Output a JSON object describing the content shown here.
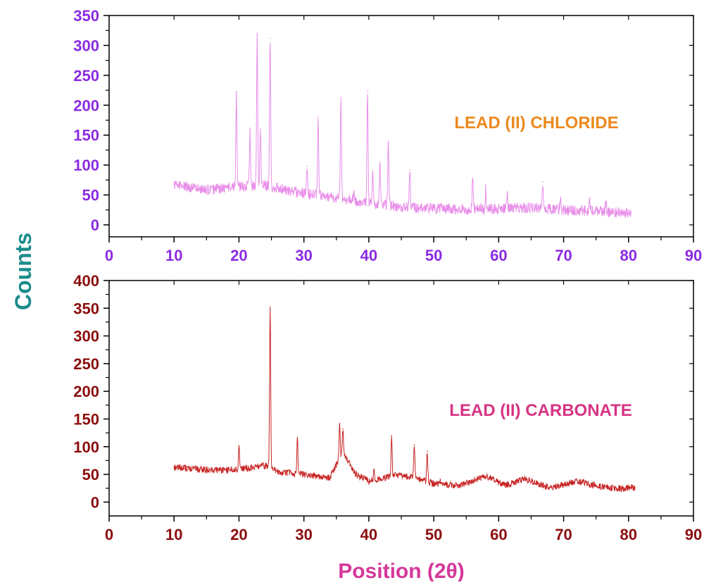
{
  "figure": {
    "ylabel": "Counts",
    "xlabel": "Position (2θ)",
    "colors": {
      "ylabel": "#1c8c8c",
      "xlabel": "#d6379a",
      "axis": "#000000"
    }
  },
  "chart_data": [
    {
      "type": "line",
      "annotation": "LEAD (II) CHLORIDE",
      "annotation_color": "#ec8a1e",
      "tick_color": "#8b2be2",
      "line_color": "#e98ee9",
      "xlim": [
        0,
        90
      ],
      "ylim": [
        -20,
        350
      ],
      "xticks": [
        0,
        10,
        20,
        30,
        40,
        50,
        60,
        70,
        80,
        90
      ],
      "yticks": [
        0,
        50,
        100,
        150,
        200,
        250,
        300,
        350
      ],
      "x_range": [
        10,
        80.5
      ],
      "baseline": [
        [
          10,
          68
        ],
        [
          15,
          58
        ],
        [
          20,
          64
        ],
        [
          24,
          66
        ],
        [
          28,
          56
        ],
        [
          32,
          50
        ],
        [
          36,
          44
        ],
        [
          40,
          36
        ],
        [
          45,
          30
        ],
        [
          50,
          27
        ],
        [
          55,
          26
        ],
        [
          60,
          27
        ],
        [
          65,
          29
        ],
        [
          70,
          25
        ],
        [
          75,
          23
        ],
        [
          80.5,
          20
        ]
      ],
      "noise": 9,
      "peaks": [
        {
          "x": 19.6,
          "y": 222
        },
        {
          "x": 21.7,
          "y": 155
        },
        {
          "x": 22.8,
          "y": 320
        },
        {
          "x": 23.3,
          "y": 160
        },
        {
          "x": 24.8,
          "y": 312
        },
        {
          "x": 30.5,
          "y": 98
        },
        {
          "x": 32.2,
          "y": 180
        },
        {
          "x": 35.7,
          "y": 213
        },
        {
          "x": 37.7,
          "y": 52
        },
        {
          "x": 39.8,
          "y": 223
        },
        {
          "x": 40.6,
          "y": 90
        },
        {
          "x": 41.7,
          "y": 100
        },
        {
          "x": 43.0,
          "y": 134
        },
        {
          "x": 46.3,
          "y": 92
        },
        {
          "x": 56.0,
          "y": 78
        },
        {
          "x": 58.0,
          "y": 60
        },
        {
          "x": 61.3,
          "y": 52
        },
        {
          "x": 66.8,
          "y": 72
        },
        {
          "x": 69.5,
          "y": 42
        },
        {
          "x": 74.0,
          "y": 42
        },
        {
          "x": 76.5,
          "y": 40
        }
      ]
    },
    {
      "type": "line",
      "annotation": "LEAD (II) CARBONATE",
      "annotation_color": "#d63384",
      "tick_color": "#8b0d0d",
      "line_color": "#c82424",
      "xlim": [
        0,
        90
      ],
      "ylim": [
        -25,
        400
      ],
      "xticks": [
        0,
        10,
        20,
        30,
        40,
        50,
        60,
        70,
        80,
        90
      ],
      "yticks": [
        0,
        50,
        100,
        150,
        200,
        250,
        300,
        350,
        400
      ],
      "x_range": [
        10,
        81
      ],
      "baseline": [
        [
          10,
          63
        ],
        [
          15,
          58
        ],
        [
          19,
          58
        ],
        [
          22,
          62
        ],
        [
          24,
          66
        ],
        [
          26,
          55
        ],
        [
          30,
          50
        ],
        [
          34,
          44
        ],
        [
          36,
          90
        ],
        [
          38,
          50
        ],
        [
          40,
          38
        ],
        [
          44,
          48
        ],
        [
          47,
          45
        ],
        [
          50,
          33
        ],
        [
          54,
          30
        ],
        [
          58,
          47
        ],
        [
          61,
          30
        ],
        [
          64,
          42
        ],
        [
          68,
          25
        ],
        [
          72,
          38
        ],
        [
          75,
          30
        ],
        [
          78,
          24
        ],
        [
          81,
          27
        ]
      ],
      "noise": 6,
      "peaks": [
        {
          "x": 20.0,
          "y": 102
        },
        {
          "x": 24.8,
          "y": 352
        },
        {
          "x": 29.0,
          "y": 112
        },
        {
          "x": 35.5,
          "y": 140
        },
        {
          "x": 36.0,
          "y": 132
        },
        {
          "x": 40.8,
          "y": 58
        },
        {
          "x": 43.5,
          "y": 120
        },
        {
          "x": 47.0,
          "y": 103
        },
        {
          "x": 49.0,
          "y": 92
        },
        {
          "x": 51.0,
          "y": 38
        }
      ]
    }
  ]
}
